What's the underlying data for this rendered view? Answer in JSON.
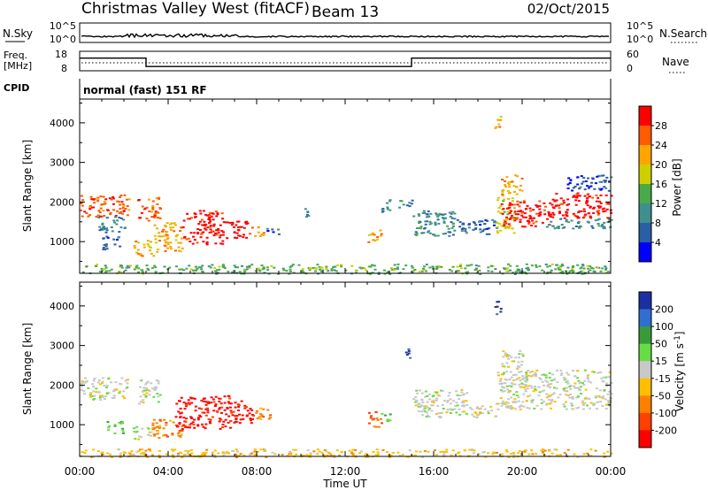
{
  "header": {
    "site": "Christmas Valley West (fitACF)",
    "beam": "Beam 13",
    "date": "02/Oct/2015"
  },
  "strip_labels": {
    "nsky": "N.Sky",
    "nsky_tick_top": "10^5",
    "nsky_tick_bottom": "10^0",
    "nsearch": "N.Search",
    "nsearch_tick_top": "10^5",
    "nsearch_tick_bottom": "10^0",
    "freq_line1": "Freq.",
    "freq_line2": "[MHz]",
    "freq_tick_top": "18",
    "freq_tick_bottom": "8",
    "nave": "Nave",
    "nave_tick_top": "60",
    "nave_tick_bottom": "0",
    "cpid": "CPID",
    "cpid_value": "normal (fast) 151 RF"
  },
  "chart_data": {
    "type": "heatmap",
    "x_axis": {
      "label": "Time UT",
      "ticks": [
        "00:00",
        "04:00",
        "08:00",
        "12:00",
        "16:00",
        "20:00",
        "00:00"
      ],
      "range_hours": [
        0,
        24
      ]
    },
    "y_axis": {
      "label": "Slant Range [km]",
      "ticks": [
        1000,
        2000,
        3000,
        4000
      ],
      "range": [
        200,
        4600
      ]
    },
    "frequency_mhz": [
      {
        "start_hour": 0,
        "end_hour": 3,
        "value": 14.5
      },
      {
        "start_hour": 3,
        "end_hour": 15,
        "value": 10.2
      },
      {
        "start_hour": 15,
        "end_hour": 24,
        "value": 14.5
      }
    ],
    "power_panel": {
      "colorbar_label": "Power [dB]",
      "colorbar_ticks": [
        "4",
        "8",
        "12",
        "16",
        "20",
        "24",
        "28"
      ],
      "colors": [
        "#0000ff",
        "#2a5fa5",
        "#3f8f8f",
        "#4aaa4a",
        "#cfcf00",
        "#ffa500",
        "#ff5a00",
        "#ff0000"
      ],
      "regions": [
        {
          "t0": 0.0,
          "t1": 2.2,
          "r0": 1650,
          "r1": 2200,
          "level": 6
        },
        {
          "t0": 0.8,
          "t1": 2.0,
          "r0": 1250,
          "r1": 1650,
          "level": 2
        },
        {
          "t0": 1.0,
          "t1": 1.8,
          "r0": 800,
          "r1": 1150,
          "level": 1
        },
        {
          "t0": 2.6,
          "t1": 3.6,
          "r0": 1550,
          "r1": 2150,
          "level": 6
        },
        {
          "t0": 2.4,
          "t1": 3.3,
          "r0": 650,
          "r1": 1050,
          "level": 5
        },
        {
          "t0": 3.3,
          "t1": 4.6,
          "r0": 750,
          "r1": 1500,
          "level": 5
        },
        {
          "t0": 4.6,
          "t1": 6.5,
          "r0": 950,
          "r1": 1800,
          "level": 7
        },
        {
          "t0": 6.5,
          "t1": 7.6,
          "r0": 1100,
          "r1": 1550,
          "level": 7
        },
        {
          "t0": 7.6,
          "t1": 8.3,
          "r0": 1150,
          "r1": 1400,
          "level": 5
        },
        {
          "t0": 8.3,
          "t1": 9.0,
          "r0": 1200,
          "r1": 1350,
          "level": 1
        },
        {
          "t0": 10.0,
          "t1": 10.4,
          "r0": 1650,
          "r1": 1900,
          "level": 2
        },
        {
          "t0": 13.0,
          "t1": 13.6,
          "r0": 1000,
          "r1": 1350,
          "level": 5
        },
        {
          "t0": 13.6,
          "t1": 14.0,
          "r0": 1700,
          "r1": 2100,
          "level": 2
        },
        {
          "t0": 14.4,
          "t1": 15.0,
          "r0": 1850,
          "r1": 2100,
          "level": 2
        },
        {
          "t0": 15.0,
          "t1": 17.0,
          "r0": 1150,
          "r1": 1800,
          "level": 2
        },
        {
          "t0": 17.0,
          "t1": 18.8,
          "r0": 1200,
          "r1": 1600,
          "level": 1
        },
        {
          "t0": 18.8,
          "t1": 19.6,
          "r0": 1200,
          "r1": 2200,
          "level": 4
        },
        {
          "t0": 19.0,
          "t1": 21.3,
          "r0": 1400,
          "r1": 2050,
          "level": 7
        },
        {
          "t0": 21.3,
          "t1": 24.0,
          "r0": 1600,
          "r1": 2250,
          "level": 7
        },
        {
          "t0": 21.0,
          "t1": 24.0,
          "r0": 1350,
          "r1": 1600,
          "level": 2
        },
        {
          "t0": 19.0,
          "t1": 20.0,
          "r0": 2200,
          "r1": 2700,
          "level": 5
        },
        {
          "t0": 22.0,
          "t1": 24.0,
          "r0": 2300,
          "r1": 2700,
          "level": 1
        },
        {
          "t0": 18.7,
          "t1": 19.0,
          "r0": 3700,
          "r1": 4200,
          "level": 5
        },
        {
          "t0": 0.0,
          "t1": 24.0,
          "r0": 200,
          "r1": 450,
          "level": 3
        }
      ]
    },
    "velocity_panel": {
      "colorbar_label": "Velocity [m s^-1]",
      "colorbar_ticks": [
        "200",
        "100",
        "50",
        "15",
        "-15",
        "-50",
        "-100",
        "-200"
      ],
      "colors": [
        "#1c2fa0",
        "#2f6fd0",
        "#3a9a3a",
        "#66dd44",
        "#c8c8c8",
        "#ffbf00",
        "#ff8000",
        "#ff4000",
        "#ff0000"
      ],
      "regions": [
        {
          "t0": 0.0,
          "t1": 2.2,
          "r0": 1650,
          "r1": 2200,
          "level": 4
        },
        {
          "t0": 2.6,
          "t1": 3.6,
          "r0": 1550,
          "r1": 2150,
          "level": 4
        },
        {
          "t0": 1.2,
          "t1": 2.0,
          "r0": 800,
          "r1": 1100,
          "level": 3
        },
        {
          "t0": 2.4,
          "t1": 3.2,
          "r0": 650,
          "r1": 1000,
          "level": 4
        },
        {
          "t0": 3.2,
          "t1": 4.6,
          "r0": 650,
          "r1": 1150,
          "level": 6
        },
        {
          "t0": 4.3,
          "t1": 6.8,
          "r0": 900,
          "r1": 1750,
          "level": 8
        },
        {
          "t0": 6.8,
          "t1": 7.8,
          "r0": 1050,
          "r1": 1650,
          "level": 8
        },
        {
          "t0": 7.8,
          "t1": 8.6,
          "r0": 1150,
          "r1": 1450,
          "level": 6
        },
        {
          "t0": 13.0,
          "t1": 13.6,
          "r0": 950,
          "r1": 1350,
          "level": 6
        },
        {
          "t0": 13.6,
          "t1": 14.2,
          "r0": 1100,
          "r1": 1300,
          "level": 3
        },
        {
          "t0": 15.0,
          "t1": 17.5,
          "r0": 1200,
          "r1": 1900,
          "level": 4
        },
        {
          "t0": 17.5,
          "t1": 18.8,
          "r0": 1200,
          "r1": 1500,
          "level": 4
        },
        {
          "t0": 18.8,
          "t1": 24.0,
          "r0": 1400,
          "r1": 2400,
          "level": 4
        },
        {
          "t0": 19.0,
          "t1": 20.0,
          "r0": 2400,
          "r1": 2900,
          "level": 4
        },
        {
          "t0": 18.7,
          "t1": 19.0,
          "r0": 3800,
          "r1": 4200,
          "level": 0
        },
        {
          "t0": 14.6,
          "t1": 14.9,
          "r0": 2700,
          "r1": 3000,
          "level": 0
        },
        {
          "t0": 0.0,
          "t1": 24.0,
          "r0": 200,
          "r1": 400,
          "level": 5
        }
      ]
    }
  }
}
